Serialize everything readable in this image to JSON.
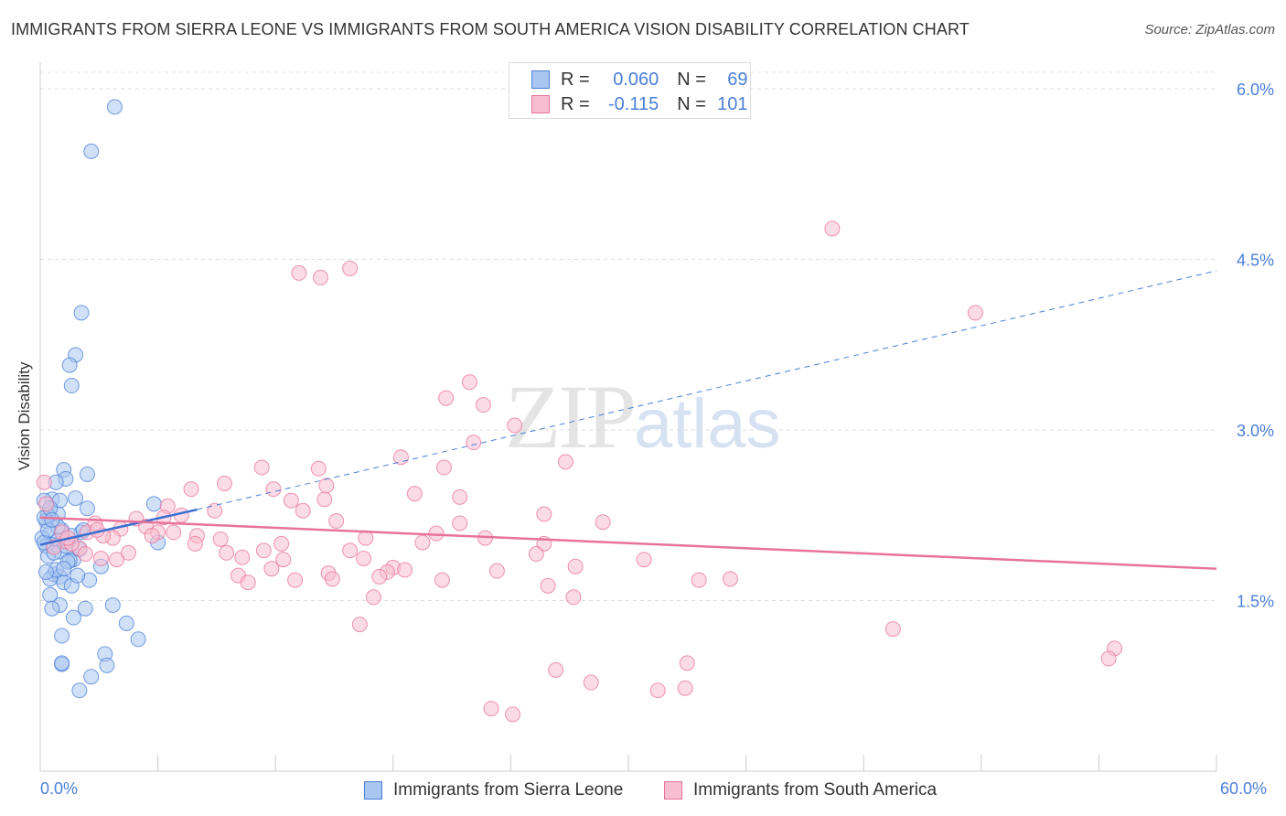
{
  "header": {
    "title": "IMMIGRANTS FROM SIERRA LEONE VS IMMIGRANTS FROM SOUTH AMERICA VISION DISABILITY CORRELATION CHART",
    "source": "Source: ZipAtlas.com"
  },
  "watermark": {
    "zip": "ZIP",
    "atlas": "atlas"
  },
  "legend": {
    "rows": [
      {
        "r_label": "R =",
        "r_value": "0.060",
        "n_label": "N =",
        "n_value": "69",
        "color": "#4a7fd8"
      },
      {
        "r_label": "R =",
        "r_value": "-0.115",
        "n_label": "N =",
        "n_value": "101",
        "color": "#e8739a"
      }
    ]
  },
  "chart_data": {
    "type": "scatter",
    "title": "IMMIGRANTS FROM SIERRA LEONE VS IMMIGRANTS FROM SOUTH AMERICA VISION DISABILITY CORRELATION CHART",
    "xlabel": "",
    "ylabel": "Vision Disability",
    "xlim": [
      0,
      60
    ],
    "ylim": [
      0,
      6.2
    ],
    "x_tick_labels": [
      "0.0%",
      "60.0%"
    ],
    "y_ticks": [
      1.5,
      3.0,
      4.5,
      6.0
    ],
    "y_tick_labels": [
      "1.5%",
      "3.0%",
      "4.5%",
      "6.0%"
    ],
    "grid": true,
    "legend_position": "top-center",
    "series": [
      {
        "name": "Immigrants from Sierra Leone",
        "color": "#4a7fd8",
        "fill": "#a9c6f0",
        "trend": {
          "x": [
            0,
            8
          ],
          "y": [
            1.99,
            2.3
          ],
          "extended_x": [
            8,
            60
          ],
          "extended_y": [
            2.3,
            4.4
          ]
        },
        "points": [
          [
            3.8,
            5.84
          ],
          [
            2.6,
            5.45
          ],
          [
            2.1,
            4.03
          ],
          [
            1.8,
            3.66
          ],
          [
            1.5,
            3.57
          ],
          [
            1.6,
            3.39
          ],
          [
            1.2,
            2.65
          ],
          [
            2.4,
            2.61
          ],
          [
            1.3,
            2.57
          ],
          [
            0.8,
            2.54
          ],
          [
            0.6,
            2.39
          ],
          [
            1.0,
            2.38
          ],
          [
            2.4,
            2.31
          ],
          [
            0.2,
            2.38
          ],
          [
            0.9,
            2.26
          ],
          [
            0.4,
            2.25
          ],
          [
            0.3,
            2.2
          ],
          [
            1.8,
            2.4
          ],
          [
            1.1,
            2.12
          ],
          [
            2.1,
            2.1
          ],
          [
            0.5,
            2.09
          ],
          [
            1.6,
            2.07
          ],
          [
            0.1,
            2.05
          ],
          [
            0.9,
            2.03
          ],
          [
            0.6,
            1.99
          ],
          [
            0.3,
            1.98
          ],
          [
            0.2,
            2.01
          ],
          [
            1.0,
            1.93
          ],
          [
            0.4,
            1.89
          ],
          [
            1.7,
            1.86
          ],
          [
            1.5,
            1.85
          ],
          [
            0.7,
            1.73
          ],
          [
            1.0,
            1.71
          ],
          [
            0.5,
            1.69
          ],
          [
            1.2,
            1.66
          ],
          [
            1.6,
            1.63
          ],
          [
            0.5,
            1.55
          ],
          [
            2.5,
            1.68
          ],
          [
            3.1,
            1.8
          ],
          [
            1.0,
            1.46
          ],
          [
            2.3,
            1.43
          ],
          [
            0.6,
            1.43
          ],
          [
            3.7,
            1.46
          ],
          [
            1.7,
            1.35
          ],
          [
            4.4,
            1.3
          ],
          [
            1.1,
            1.19
          ],
          [
            5.0,
            1.16
          ],
          [
            3.3,
            1.03
          ],
          [
            1.1,
            0.94
          ],
          [
            3.4,
            0.93
          ],
          [
            2.6,
            0.83
          ],
          [
            2.0,
            0.71
          ],
          [
            6.0,
            2.01
          ],
          [
            5.8,
            2.35
          ],
          [
            0.9,
            2.15
          ],
          [
            0.4,
            2.12
          ],
          [
            1.3,
            1.98
          ],
          [
            0.7,
            1.92
          ],
          [
            2.0,
            1.95
          ],
          [
            0.2,
            2.23
          ],
          [
            0.5,
            2.31
          ],
          [
            1.4,
            1.84
          ],
          [
            0.8,
            1.77
          ],
          [
            2.2,
            2.12
          ],
          [
            1.1,
            0.95
          ],
          [
            0.3,
            1.75
          ],
          [
            1.9,
            1.72
          ],
          [
            0.6,
            2.21
          ],
          [
            1.2,
            1.78
          ]
        ]
      },
      {
        "name": "Immigrants from South America",
        "color": "#e8739a",
        "fill": "#f7bdd0",
        "trend": {
          "x": [
            0,
            60
          ],
          "y": [
            2.23,
            1.78
          ]
        },
        "points": [
          [
            0.2,
            2.54
          ],
          [
            40.4,
            4.77
          ],
          [
            13.2,
            4.38
          ],
          [
            14.3,
            4.34
          ],
          [
            15.8,
            4.42
          ],
          [
            47.7,
            4.03
          ],
          [
            21.9,
            3.42
          ],
          [
            20.7,
            3.28
          ],
          [
            22.6,
            3.22
          ],
          [
            24.2,
            3.04
          ],
          [
            22.1,
            2.89
          ],
          [
            18.4,
            2.76
          ],
          [
            26.8,
            2.72
          ],
          [
            20.6,
            2.67
          ],
          [
            11.3,
            2.67
          ],
          [
            14.2,
            2.66
          ],
          [
            14.6,
            2.51
          ],
          [
            9.4,
            2.53
          ],
          [
            7.7,
            2.48
          ],
          [
            11.9,
            2.48
          ],
          [
            19.1,
            2.44
          ],
          [
            21.4,
            2.41
          ],
          [
            12.8,
            2.38
          ],
          [
            14.5,
            2.39
          ],
          [
            13.4,
            2.29
          ],
          [
            8.9,
            2.29
          ],
          [
            6.5,
            2.33
          ],
          [
            25.7,
            2.26
          ],
          [
            15.1,
            2.2
          ],
          [
            28.7,
            2.19
          ],
          [
            21.4,
            2.18
          ],
          [
            4.9,
            2.22
          ],
          [
            6.3,
            2.23
          ],
          [
            7.2,
            2.25
          ],
          [
            5.4,
            2.15
          ],
          [
            4.1,
            2.13
          ],
          [
            6.0,
            2.1
          ],
          [
            6.8,
            2.1
          ],
          [
            3.7,
            2.05
          ],
          [
            5.7,
            2.07
          ],
          [
            3.2,
            2.07
          ],
          [
            2.4,
            2.1
          ],
          [
            16.6,
            2.05
          ],
          [
            9.2,
            2.04
          ],
          [
            8.0,
            2.07
          ],
          [
            7.9,
            2.0
          ],
          [
            20.2,
            2.09
          ],
          [
            19.5,
            2.01
          ],
          [
            22.7,
            2.05
          ],
          [
            25.7,
            2.0
          ],
          [
            12.3,
            2.0
          ],
          [
            11.4,
            1.94
          ],
          [
            9.5,
            1.92
          ],
          [
            15.8,
            1.94
          ],
          [
            2.0,
            1.96
          ],
          [
            1.3,
            2.02
          ],
          [
            1.1,
            2.1
          ],
          [
            2.3,
            1.91
          ],
          [
            4.5,
            1.92
          ],
          [
            1.6,
            2.0
          ],
          [
            3.1,
            1.87
          ],
          [
            3.9,
            1.86
          ],
          [
            12.4,
            1.86
          ],
          [
            10.3,
            1.88
          ],
          [
            16.5,
            1.87
          ],
          [
            25.3,
            1.91
          ],
          [
            30.8,
            1.86
          ],
          [
            27.3,
            1.8
          ],
          [
            11.8,
            1.78
          ],
          [
            18.0,
            1.79
          ],
          [
            17.7,
            1.75
          ],
          [
            18.6,
            1.77
          ],
          [
            23.3,
            1.76
          ],
          [
            14.7,
            1.74
          ],
          [
            10.1,
            1.72
          ],
          [
            17.3,
            1.71
          ],
          [
            14.9,
            1.69
          ],
          [
            13.0,
            1.68
          ],
          [
            10.6,
            1.66
          ],
          [
            20.5,
            1.68
          ],
          [
            25.9,
            1.63
          ],
          [
            33.6,
            1.68
          ],
          [
            35.2,
            1.69
          ],
          [
            27.2,
            1.53
          ],
          [
            17.0,
            1.53
          ],
          [
            16.3,
            1.29
          ],
          [
            43.5,
            1.25
          ],
          [
            54.8,
            1.08
          ],
          [
            54.5,
            0.99
          ],
          [
            33.0,
            0.95
          ],
          [
            26.3,
            0.89
          ],
          [
            28.1,
            0.78
          ],
          [
            32.9,
            0.73
          ],
          [
            31.5,
            0.71
          ],
          [
            23.0,
            0.55
          ],
          [
            24.1,
            0.5
          ],
          [
            2.8,
            2.18
          ],
          [
            1.4,
            2.05
          ],
          [
            0.3,
            2.35
          ],
          [
            0.7,
            1.97
          ],
          [
            2.9,
            2.12
          ]
        ]
      }
    ]
  },
  "x_axis_labels": {
    "left": "0.0%",
    "right": "60.0%"
  }
}
